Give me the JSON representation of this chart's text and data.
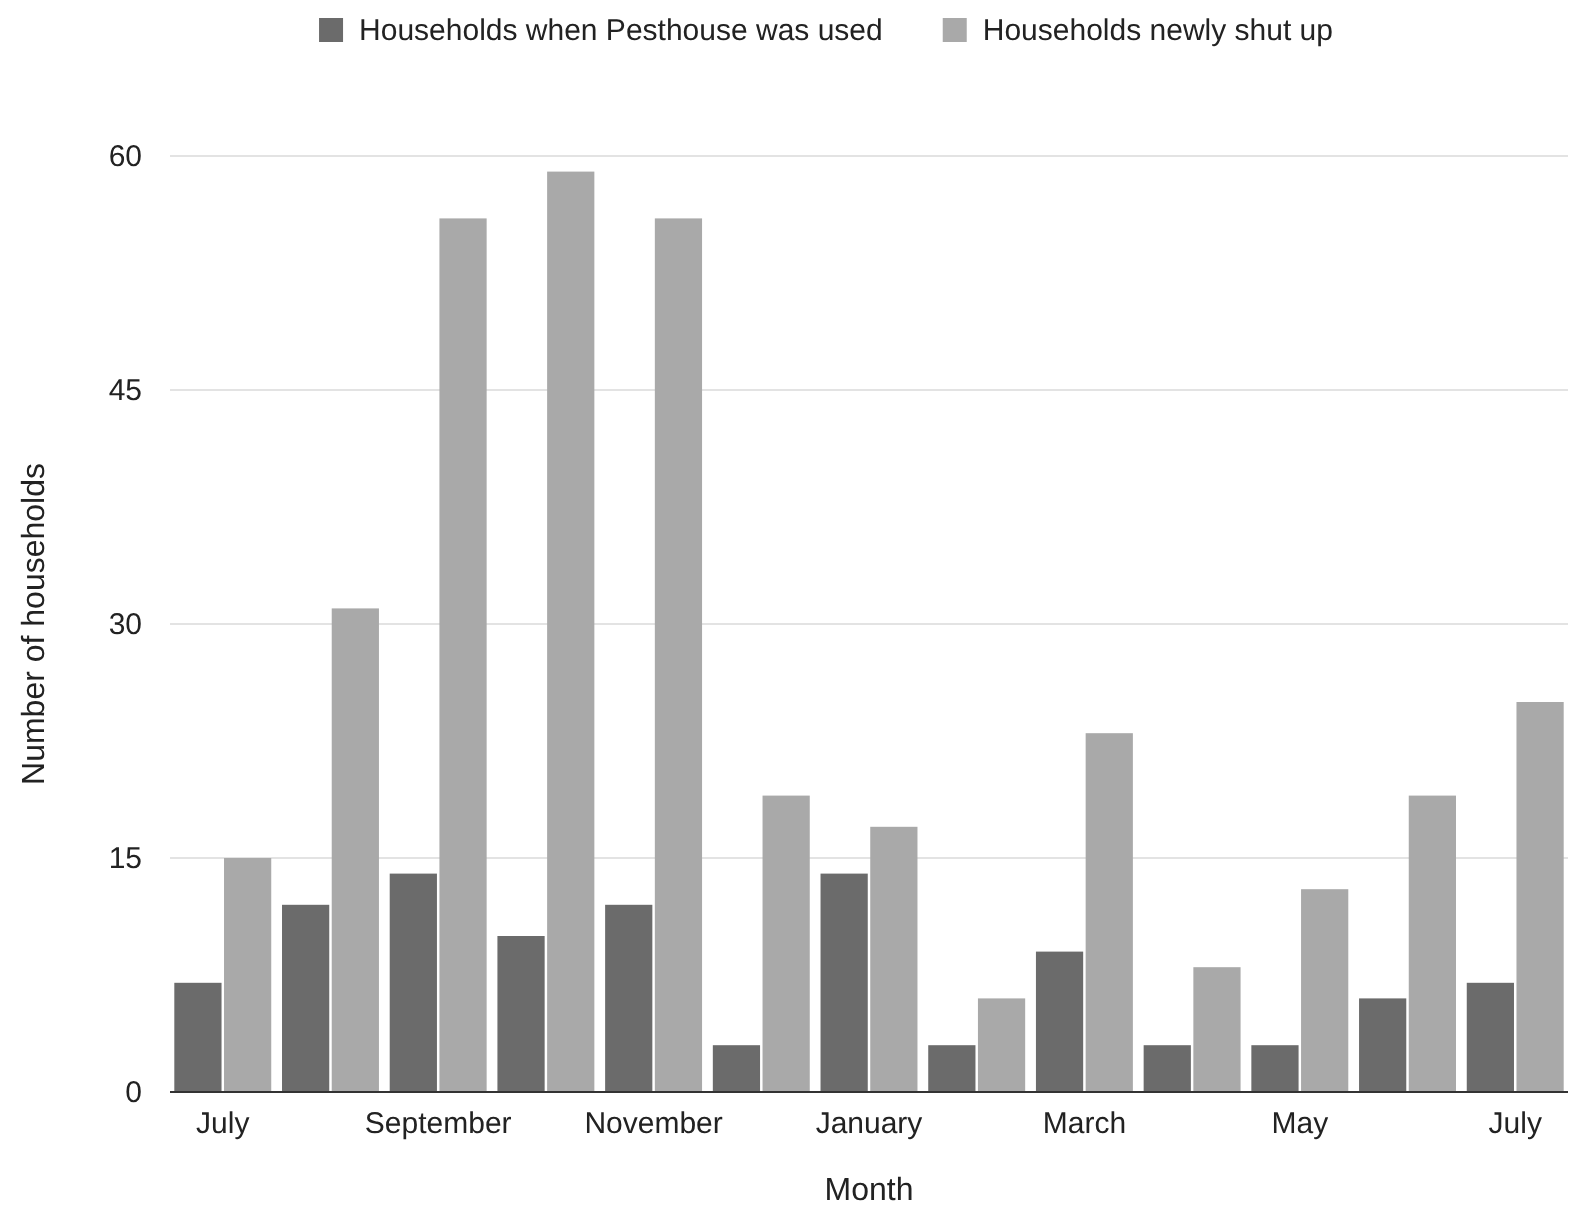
{
  "chart_data": {
    "type": "bar",
    "xlabel": "Month",
    "ylabel": "Number of households",
    "categories": [
      "July",
      null,
      "September",
      null,
      "November",
      null,
      "January",
      null,
      "March",
      null,
      "May",
      null,
      "July"
    ],
    "series": [
      {
        "name": "Households when Pesthouse was used",
        "color": "#6b6b6b",
        "values": [
          7,
          12,
          14,
          10,
          12,
          3,
          14,
          3,
          9,
          3,
          3,
          6,
          7
        ]
      },
      {
        "name": "Households newly shut up",
        "color": "#a9a9a9",
        "values": [
          15,
          31,
          56,
          59,
          56,
          19,
          17,
          6,
          23,
          8,
          13,
          19,
          25
        ]
      }
    ],
    "ylim": [
      0,
      60
    ],
    "yticks": [
      0,
      15,
      30,
      45,
      60
    ],
    "grid": "y",
    "legend": "top"
  }
}
